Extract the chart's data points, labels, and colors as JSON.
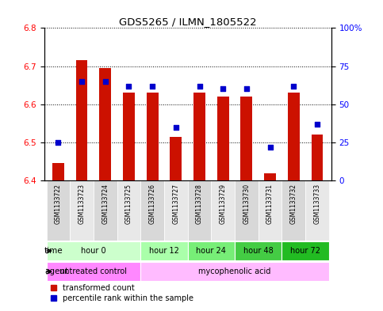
{
  "title": "GDS5265 / ILMN_1805522",
  "samples": [
    "GSM1133722",
    "GSM1133723",
    "GSM1133724",
    "GSM1133725",
    "GSM1133726",
    "GSM1133727",
    "GSM1133728",
    "GSM1133729",
    "GSM1133730",
    "GSM1133731",
    "GSM1133732",
    "GSM1133733"
  ],
  "bar_bottoms": [
    6.4,
    6.4,
    6.4,
    6.4,
    6.4,
    6.4,
    6.4,
    6.4,
    6.4,
    6.4,
    6.4,
    6.4
  ],
  "bar_tops": [
    6.445,
    6.715,
    6.695,
    6.63,
    6.63,
    6.515,
    6.63,
    6.62,
    6.62,
    6.42,
    6.63,
    6.52
  ],
  "percentile_values": [
    25,
    65,
    65,
    62,
    62,
    35,
    62,
    60,
    60,
    22,
    62,
    37
  ],
  "ylim_left": [
    6.4,
    6.8
  ],
  "ylim_right": [
    0,
    100
  ],
  "yticks_left": [
    6.4,
    6.5,
    6.6,
    6.7,
    6.8
  ],
  "yticks_right": [
    0,
    25,
    50,
    75,
    100
  ],
  "ytick_labels_right": [
    "0",
    "25",
    "50",
    "75",
    "100%"
  ],
  "bar_color": "#cc1100",
  "dot_color": "#0000cc",
  "background_color": "#ffffff",
  "time_groups": [
    {
      "label": "hour 0",
      "start": 0,
      "end": 3,
      "color": "#ccffcc"
    },
    {
      "label": "hour 12",
      "start": 4,
      "end": 5,
      "color": "#aaffaa"
    },
    {
      "label": "hour 24",
      "start": 6,
      "end": 7,
      "color": "#77ee77"
    },
    {
      "label": "hour 48",
      "start": 8,
      "end": 9,
      "color": "#44cc44"
    },
    {
      "label": "hour 72",
      "start": 10,
      "end": 11,
      "color": "#22bb22"
    }
  ],
  "agent_groups": [
    {
      "label": "untreated control",
      "start": 0,
      "end": 3,
      "color": "#ff88ff"
    },
    {
      "label": "mycophenolic acid",
      "start": 4,
      "end": 11,
      "color": "#ffbbff"
    }
  ],
  "legend_items": [
    {
      "label": "transformed count",
      "color": "#cc1100"
    },
    {
      "label": "percentile rank within the sample",
      "color": "#0000cc"
    }
  ]
}
